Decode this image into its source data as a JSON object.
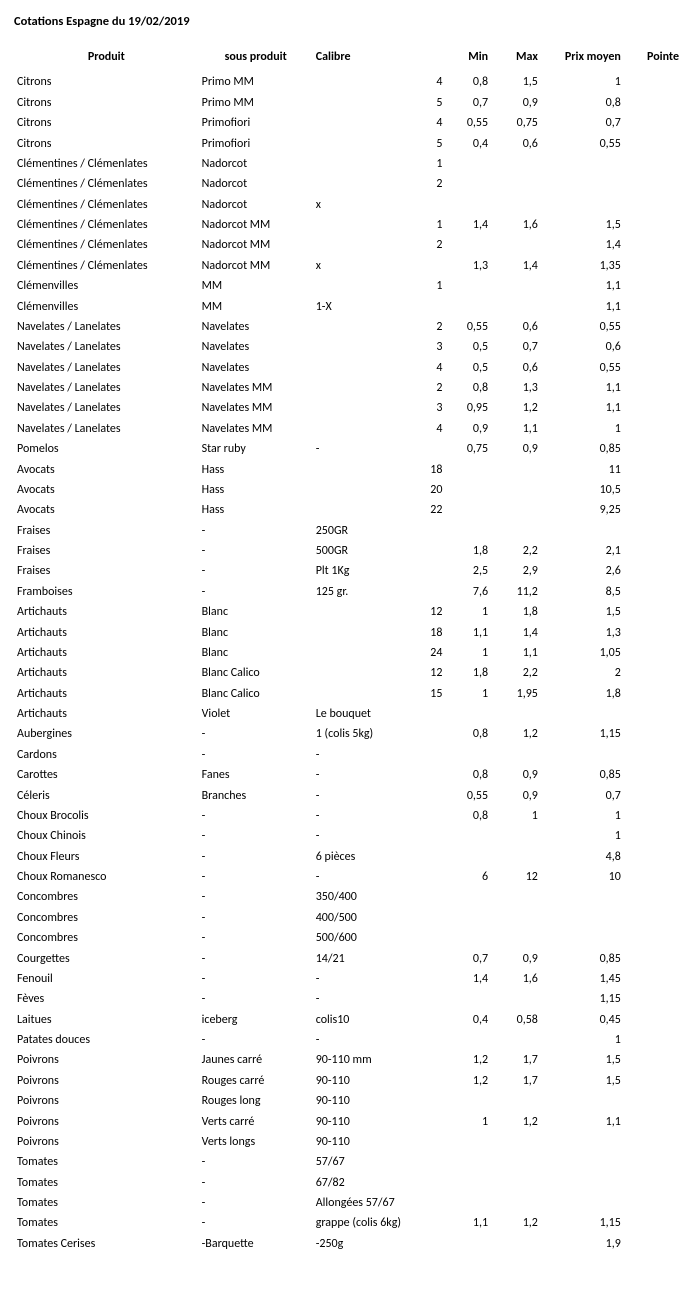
{
  "title": "Cotations Espagne du 19/02/2019",
  "columns": [
    "Produit",
    "sous produit",
    "Calibre",
    "",
    "Min",
    "Max",
    "Prix moyen",
    "Pointe"
  ],
  "rows": [
    [
      "Citrons",
      "Primo MM",
      "",
      "4",
      "0,8",
      "1,5",
      "1",
      ""
    ],
    [
      "Citrons",
      "Primo MM",
      "",
      "5",
      "0,7",
      "0,9",
      "0,8",
      ""
    ],
    [
      "Citrons",
      "Primofiori",
      "",
      "4",
      "0,55",
      "0,75",
      "0,7",
      ""
    ],
    [
      "Citrons",
      "Primofiori",
      "",
      "5",
      "0,4",
      "0,6",
      "0,55",
      ""
    ],
    [
      "Clémentines / Clémenlates",
      "Nadorcot",
      "",
      "1",
      "",
      "",
      "",
      ""
    ],
    [
      "Clémentines / Clémenlates",
      "Nadorcot",
      "",
      "2",
      "",
      "",
      "",
      ""
    ],
    [
      "Clémentines / Clémenlates",
      "Nadorcot",
      "x",
      "",
      "",
      "",
      "",
      ""
    ],
    [
      "Clémentines / Clémenlates",
      "Nadorcot MM",
      "",
      "1",
      "1,4",
      "1,6",
      "1,5",
      ""
    ],
    [
      "Clémentines / Clémenlates",
      "Nadorcot MM",
      "",
      "2",
      "",
      "",
      "1,4",
      ""
    ],
    [
      "Clémentines / Clémenlates",
      "Nadorcot MM",
      "x",
      "",
      "1,3",
      "1,4",
      "1,35",
      ""
    ],
    [
      "Clémenvilles",
      "MM",
      "",
      "1",
      "",
      "",
      "1,1",
      ""
    ],
    [
      "Clémenvilles",
      "MM",
      "1-X",
      "",
      "",
      "",
      "1,1",
      ""
    ],
    [
      "Navelates / Lanelates",
      "Navelates",
      "",
      "2",
      "0,55",
      "0,6",
      "0,55",
      ""
    ],
    [
      "Navelates / Lanelates",
      "Navelates",
      "",
      "3",
      "0,5",
      "0,7",
      "0,6",
      ""
    ],
    [
      "Navelates / Lanelates",
      "Navelates",
      "",
      "4",
      "0,5",
      "0,6",
      "0,55",
      ""
    ],
    [
      "Navelates / Lanelates",
      "Navelates MM",
      "",
      "2",
      "0,8",
      "1,3",
      "1,1",
      ""
    ],
    [
      "Navelates / Lanelates",
      "Navelates MM",
      "",
      "3",
      "0,95",
      "1,2",
      "1,1",
      ""
    ],
    [
      "Navelates / Lanelates",
      "Navelates MM",
      "",
      "4",
      "0,9",
      "1,1",
      "1",
      ""
    ],
    [
      "Pomelos",
      "Star ruby",
      "-",
      "",
      "0,75",
      "0,9",
      "0,85",
      ""
    ],
    [
      "Avocats",
      "Hass",
      "",
      "18",
      "",
      "",
      "11",
      ""
    ],
    [
      "Avocats",
      "Hass",
      "",
      "20",
      "",
      "",
      "10,5",
      ""
    ],
    [
      "Avocats",
      "Hass",
      "",
      "22",
      "",
      "",
      "9,25",
      ""
    ],
    [
      "Fraises",
      "-",
      "250GR",
      "",
      "",
      "",
      "",
      ""
    ],
    [
      "Fraises",
      "-",
      "500GR",
      "",
      "1,8",
      "2,2",
      "2,1",
      ""
    ],
    [
      "Fraises",
      "-",
      "Plt 1Kg",
      "",
      "2,5",
      "2,9",
      "2,6",
      ""
    ],
    [
      "Framboises",
      "-",
      "125 gr.",
      "",
      "7,6",
      "11,2",
      "8,5",
      ""
    ],
    [
      "Artichauts",
      "Blanc",
      "",
      "12",
      "1",
      "1,8",
      "1,5",
      ""
    ],
    [
      "Artichauts",
      "Blanc",
      "",
      "18",
      "1,1",
      "1,4",
      "1,3",
      ""
    ],
    [
      "Artichauts",
      "Blanc",
      "",
      "24",
      "1",
      "1,1",
      "1,05",
      ""
    ],
    [
      "Artichauts",
      "Blanc Calico",
      "",
      "12",
      "1,8",
      "2,2",
      "2",
      ""
    ],
    [
      "Artichauts",
      "Blanc Calico",
      "",
      "15",
      "1",
      "1,95",
      "1,8",
      ""
    ],
    [
      "Artichauts",
      "Violet",
      "Le bouquet",
      "",
      "",
      "",
      "",
      ""
    ],
    [
      "Aubergines",
      "-",
      "1 (colis 5kg)",
      "",
      "0,8",
      "1,2",
      "1,15",
      ""
    ],
    [
      "Cardons",
      "-",
      "-",
      "",
      "",
      "",
      "",
      ""
    ],
    [
      "Carottes",
      "Fanes",
      "-",
      "",
      "0,8",
      "0,9",
      "0,85",
      ""
    ],
    [
      "Céleris",
      "Branches",
      "-",
      "",
      "0,55",
      "0,9",
      "0,7",
      ""
    ],
    [
      "Choux Brocolis",
      "-",
      "-",
      "",
      "0,8",
      "1",
      "1",
      ""
    ],
    [
      "Choux Chinois",
      "-",
      "-",
      "",
      "",
      "",
      "1",
      ""
    ],
    [
      "Choux Fleurs",
      "-",
      "6 pièces",
      "",
      "",
      "",
      "4,8",
      ""
    ],
    [
      "Choux Romanesco",
      "-",
      "-",
      "",
      "6",
      "12",
      "10",
      ""
    ],
    [
      "Concombres",
      "-",
      "350/400",
      "",
      "",
      "",
      "",
      ""
    ],
    [
      "Concombres",
      "-",
      "400/500",
      "",
      "",
      "",
      "",
      ""
    ],
    [
      "Concombres",
      "-",
      "500/600",
      "",
      "",
      "",
      "",
      ""
    ],
    [
      "Courgettes",
      "-",
      "14/21",
      "",
      "0,7",
      "0,9",
      "0,85",
      ""
    ],
    [
      "Fenouil",
      "-",
      "-",
      "",
      "1,4",
      "1,6",
      "1,45",
      ""
    ],
    [
      "Fèves",
      "-",
      "-",
      "",
      "",
      "",
      "1,15",
      ""
    ],
    [
      "Laitues",
      "iceberg",
      "colis10",
      "",
      "0,4",
      "0,58",
      "0,45",
      ""
    ],
    [
      "Patates douces",
      "-",
      "-",
      "",
      "",
      "",
      "1",
      ""
    ],
    [
      "Poivrons",
      "Jaunes carré",
      "90-110 mm",
      "",
      "1,2",
      "1,7",
      "1,5",
      ""
    ],
    [
      "Poivrons",
      "Rouges carré",
      "90-110",
      "",
      "1,2",
      "1,7",
      "1,5",
      ""
    ],
    [
      "Poivrons",
      "Rouges long",
      "90-110",
      "",
      "",
      "",
      "",
      ""
    ],
    [
      "Poivrons",
      "Verts carré",
      "90-110",
      "",
      "1",
      "1,2",
      "1,1",
      ""
    ],
    [
      "Poivrons",
      "Verts longs",
      "90-110",
      "",
      "",
      "",
      "",
      ""
    ],
    [
      "Tomates",
      "-",
      "57/67",
      "",
      "",
      "",
      "",
      ""
    ],
    [
      "Tomates",
      "-",
      "67/82",
      "",
      "",
      "",
      "",
      ""
    ],
    [
      "Tomates",
      "-",
      "Allongées 57/67",
      "",
      "",
      "",
      "",
      ""
    ],
    [
      "Tomates",
      "-",
      "grappe (colis 6kg)",
      "",
      "1,1",
      "1,2",
      "1,15",
      ""
    ],
    [
      "Tomates Cerises",
      "-Barquette",
      "-250g",
      "",
      "",
      "",
      "1,9",
      ""
    ]
  ]
}
